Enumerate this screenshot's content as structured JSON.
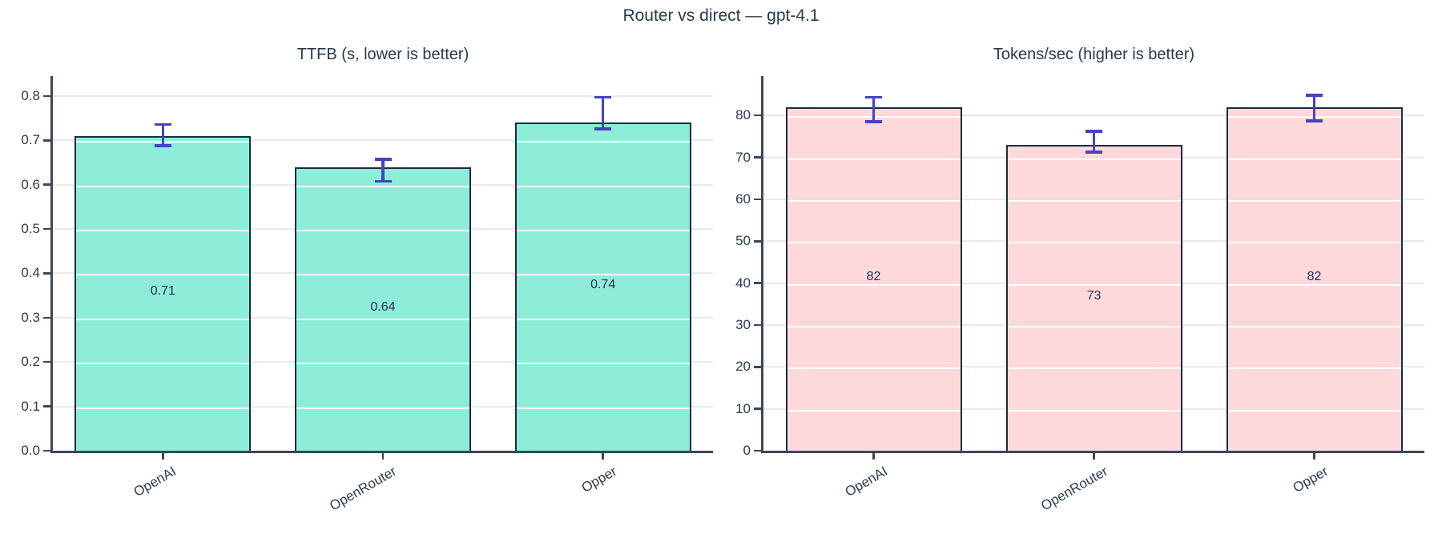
{
  "page_title": "Router vs direct — gpt-4.1",
  "colors": {
    "text": "#28394E",
    "tick_text": "#2A3B50",
    "spine": "#3B4759",
    "grid": "#E9E9E9",
    "grid_over_bar": "#FFFFFF",
    "bar_edge": "#1B2A45",
    "error_bar": "#4742C4",
    "teal_fill": "#8EEDD9",
    "pink_fill": "#FDD9DC"
  },
  "chart_data": [
    {
      "type": "bar",
      "title": "TTFB (s, lower is better)",
      "categories": [
        "OpenAI",
        "OpenRouter",
        "Opper"
      ],
      "values": [
        0.71,
        0.64,
        0.74
      ],
      "value_labels": [
        "0.71",
        "0.64",
        "0.74"
      ],
      "error_ranges": [
        [
          0.688,
          0.736
        ],
        [
          0.608,
          0.657
        ],
        [
          0.726,
          0.797
        ]
      ],
      "ytick_values": [
        0,
        0.1,
        0.2,
        0.3,
        0.4,
        0.5,
        0.6,
        0.7,
        0.8
      ],
      "ytick_labels": [
        "0.0",
        "0.1",
        "0.2",
        "0.3",
        "0.4",
        "0.5",
        "0.6",
        "0.7",
        "0.8"
      ],
      "ylim": [
        0,
        0.845
      ],
      "xlabel": "",
      "ylabel": "",
      "grid": "horizontal, light gray, white where crossing bars",
      "legend": "none",
      "bar_fill": "#8EEDD9"
    },
    {
      "type": "bar",
      "title": "Tokens/sec (higher is better)",
      "categories": [
        "OpenAI",
        "OpenRouter",
        "Opper"
      ],
      "values": [
        82,
        73,
        82
      ],
      "value_labels": [
        "82",
        "73",
        "82"
      ],
      "error_ranges": [
        [
          78.5,
          84.3
        ],
        [
          71.3,
          76.2
        ],
        [
          78.7,
          84.8
        ]
      ],
      "ytick_values": [
        0,
        10,
        20,
        30,
        40,
        50,
        60,
        70,
        80
      ],
      "ytick_labels": [
        "0",
        "10",
        "20",
        "30",
        "40",
        "50",
        "60",
        "70",
        "80"
      ],
      "ylim": [
        0,
        89.4
      ],
      "xlabel": "",
      "ylabel": "",
      "grid": "horizontal, light gray, white where crossing bars",
      "legend": "none",
      "bar_fill": "#FDD9DC"
    }
  ]
}
